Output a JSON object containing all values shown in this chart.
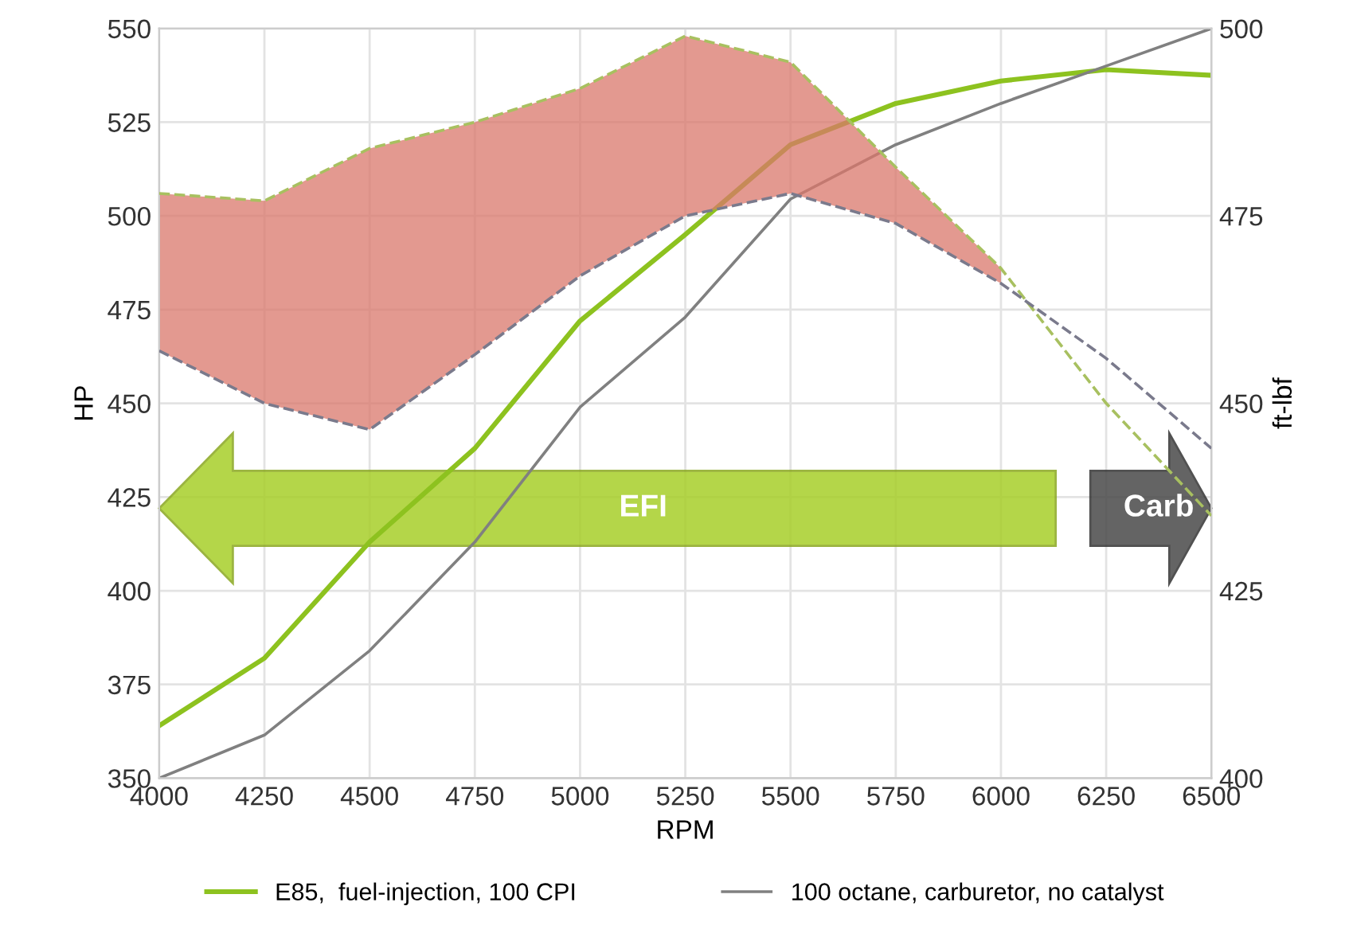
{
  "chart_data": {
    "type": "line",
    "xlabel": "RPM",
    "ylabel": "HP",
    "y2label": "ft-lbf",
    "x": [
      4000,
      4250,
      4500,
      4750,
      5000,
      5250,
      5500,
      5750,
      6000,
      6250,
      6500
    ],
    "series": [
      {
        "name": "E85,  fuel-injection, 100 CPI",
        "color": "#8dc21f",
        "values": [
          364,
          382,
          413,
          438,
          472,
          495,
          519,
          530,
          536,
          539,
          537.5
        ]
      },
      {
        "name": "100 octane, carburetor, no catalyst",
        "color": "#808080",
        "values": [
          350,
          361.5,
          384,
          413,
          449,
          473,
          504.5,
          519,
          530,
          540,
          550
        ]
      },
      {
        "color": "#a8c060",
        "axis": "y2",
        "line_style": "dashed",
        "values": [
          478,
          477,
          484,
          487.5,
          492,
          499,
          495.5,
          481.5,
          468,
          450,
          435
        ],
        "lower": [
          457,
          450,
          446.5,
          456.5,
          467,
          475,
          478,
          474,
          466,
          null,
          null
        ],
        "upper": [
          478,
          477,
          484,
          487.5,
          492,
          499,
          495.5,
          481.5,
          468,
          null,
          null
        ]
      },
      {
        "color": "#7a7a8c",
        "axis": "y2",
        "line_style": "dashed",
        "values": [
          457,
          450,
          446.5,
          456.5,
          467,
          475,
          478,
          474,
          466,
          456,
          444
        ]
      }
    ],
    "xlim": [
      4000,
      6500
    ],
    "xticks": [
      4000,
      4250,
      4500,
      4750,
      5000,
      5250,
      5500,
      5750,
      6000,
      6250,
      6500
    ],
    "ylim": [
      350,
      550
    ],
    "yticks": [
      350,
      375,
      400,
      425,
      450,
      475,
      500,
      525,
      550
    ],
    "y2lim": [
      400,
      500
    ],
    "y2ticks": [
      400,
      425,
      450,
      475,
      500
    ],
    "annotations": [
      "EFI",
      "Carb"
    ],
    "grid": true,
    "legend": "bottom",
    "marker": "none",
    "line_style": "solid"
  }
}
